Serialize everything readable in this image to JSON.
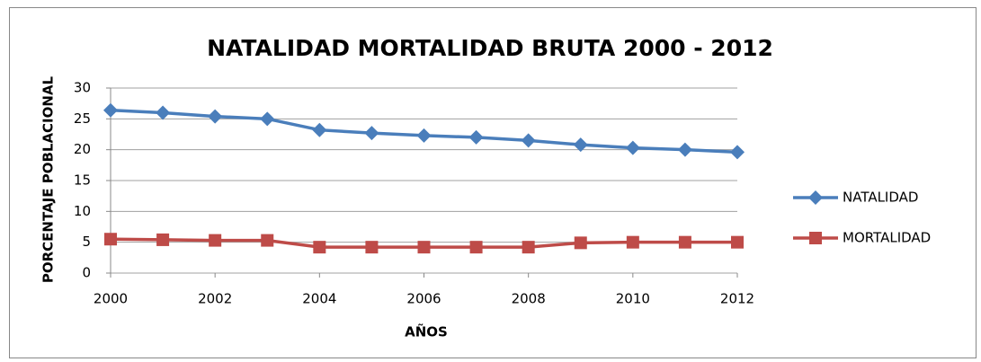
{
  "chart_data": {
    "type": "line",
    "title": "NATALIDAD MORTALIDAD BRUTA 2000 - 2012",
    "xlabel": "AÑOS",
    "ylabel": "PORCENTAJE POBLACIONAL",
    "x": [
      2000,
      2001,
      2002,
      2003,
      2004,
      2005,
      2006,
      2007,
      2008,
      2009,
      2010,
      2011,
      2012
    ],
    "series": [
      {
        "name": "NATALIDAD",
        "color": "#4a7ebb",
        "marker": "diamond",
        "values": [
          26.4,
          26,
          25.4,
          25,
          23.2,
          22.7,
          22.3,
          22,
          21.5,
          20.8,
          20.3,
          20,
          19.6
        ]
      },
      {
        "name": "MORTALIDAD",
        "color": "#be4b48",
        "marker": "square",
        "values": [
          5.5,
          5.4,
          5.3,
          5.3,
          4.2,
          4.2,
          4.2,
          4.2,
          4.2,
          4.9,
          5,
          5,
          5
        ]
      }
    ],
    "xlim": [
      2000,
      2012
    ],
    "xticks": [
      2000,
      2002,
      2004,
      2006,
      2008,
      2010,
      2012
    ],
    "ylim": [
      0,
      30
    ],
    "yticks": [
      0,
      5,
      10,
      15,
      20,
      25,
      30
    ],
    "grid": true,
    "legend": "right"
  }
}
